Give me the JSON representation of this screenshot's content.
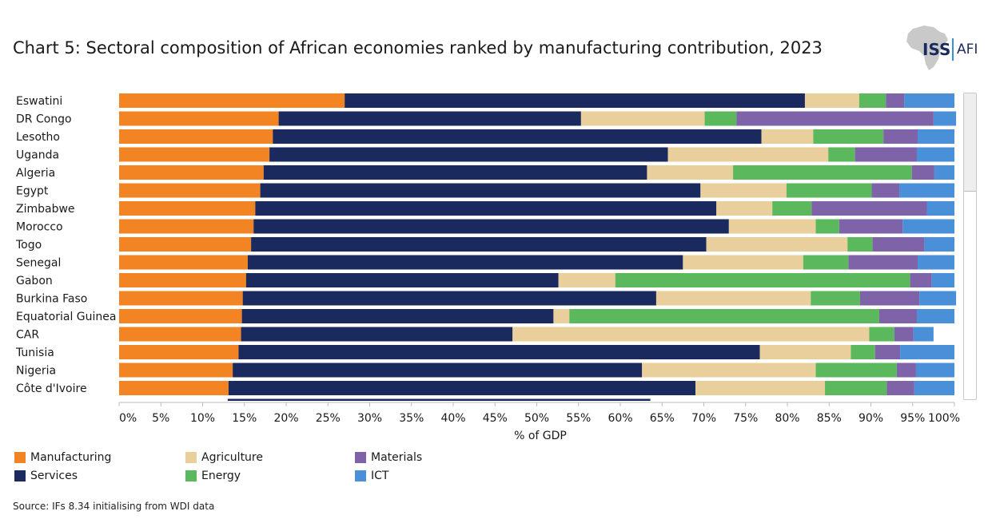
{
  "title": "Chart 5: Sectoral composition of African economies ranked by manufacturing contribution, 2023",
  "logo": {
    "iss": "ISS",
    "afi": "AFI"
  },
  "source": "Source: IFs 8.34 initialising from WDI data",
  "colors": {
    "Manufacturing": "#f28423",
    "Services": "#1b2a5e",
    "Agriculture": "#e8cf9b",
    "Energy": "#5cb85c",
    "Materials": "#7e63a8",
    "ICT": "#4a90d9"
  },
  "chart_data": {
    "type": "bar",
    "orientation": "horizontal",
    "stacked": true,
    "title": "Chart 5: Sectoral composition of African economies ranked by manufacturing contribution, 2023",
    "xlabel": "% of GDP",
    "ylabel": "",
    "xlim": [
      0,
      100
    ],
    "xticks": [
      "0%",
      "5%",
      "10%",
      "15%",
      "20%",
      "25%",
      "30%",
      "35%",
      "40%",
      "45%",
      "50%",
      "55%",
      "60%",
      "65%",
      "70%",
      "75%",
      "80%",
      "85%",
      "90%",
      "95%",
      "100%"
    ],
    "categories": [
      "Eswatini",
      "DR Congo",
      "Lesotho",
      "Uganda",
      "Algeria",
      "Egypt",
      "Zimbabwe",
      "Morocco",
      "Togo",
      "Senegal",
      "Gabon",
      "Burkina Faso",
      "Equatorial Guinea",
      "CAR",
      "Tunisia",
      "Nigeria",
      "Côte d'Ivoire"
    ],
    "series": [
      {
        "name": "Manufacturing",
        "values": [
          27.0,
          19.1,
          18.4,
          18.0,
          17.3,
          16.9,
          16.3,
          16.1,
          15.8,
          15.4,
          15.2,
          14.8,
          14.7,
          14.6,
          14.3,
          13.6,
          13.1
        ]
      },
      {
        "name": "Services",
        "values": [
          55.1,
          36.2,
          58.5,
          47.7,
          45.9,
          52.7,
          55.2,
          56.9,
          54.5,
          52.1,
          37.4,
          49.5,
          37.3,
          32.5,
          62.4,
          49.0,
          55.9
        ]
      },
      {
        "name": "Agriculture",
        "values": [
          6.5,
          14.8,
          6.2,
          19.2,
          10.3,
          10.3,
          6.7,
          10.4,
          16.9,
          14.4,
          6.8,
          18.5,
          1.9,
          42.7,
          10.9,
          20.8,
          15.5
        ]
      },
      {
        "name": "Energy",
        "values": [
          3.2,
          3.8,
          8.4,
          3.2,
          21.4,
          10.2,
          4.7,
          2.8,
          3.0,
          5.4,
          35.3,
          5.9,
          37.1,
          3.0,
          2.9,
          9.7,
          7.4
        ]
      },
      {
        "name": "Materials",
        "values": [
          2.2,
          23.6,
          4.1,
          7.4,
          2.7,
          3.3,
          13.8,
          7.6,
          6.2,
          8.3,
          2.6,
          7.1,
          4.5,
          2.3,
          3.0,
          2.3,
          3.3
        ]
      },
      {
        "name": "ICT",
        "values": [
          6.0,
          2.7,
          4.4,
          4.5,
          2.4,
          6.6,
          3.3,
          6.2,
          3.6,
          4.4,
          2.7,
          4.4,
          4.5,
          2.4,
          6.5,
          4.6,
          4.8
        ]
      }
    ],
    "legend": [
      {
        "name": "Manufacturing"
      },
      {
        "name": "Services"
      },
      {
        "name": "Agriculture"
      },
      {
        "name": "Energy"
      },
      {
        "name": "Materials"
      },
      {
        "name": "ICT"
      }
    ],
    "legend_position": "bottom-left"
  }
}
